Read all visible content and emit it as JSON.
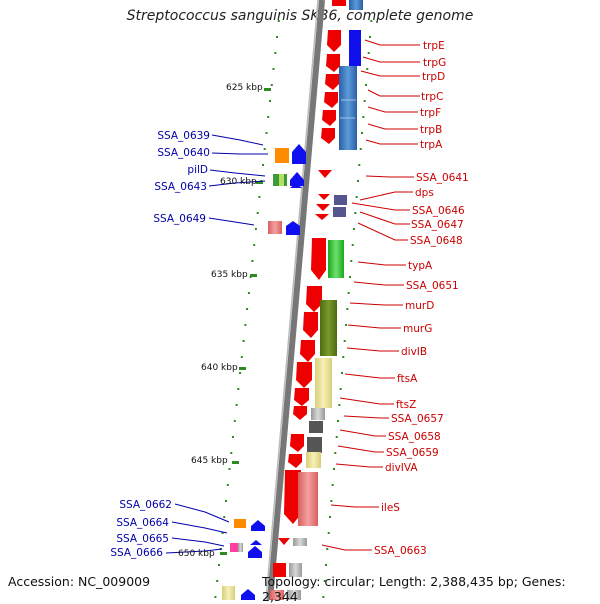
{
  "title": "Streptococcus sanguinis SK36, complete genome",
  "footer": {
    "accession": "Accession: NC_009009",
    "topology": "Topology: circular; Length: 2,388,435 bp; Genes: 2,344"
  },
  "kbp_labels": [
    "625 kbp",
    "630 kbp",
    "635 kbp",
    "640 kbp",
    "645 kbp",
    "650 kbp"
  ],
  "right_genes": [
    "trpE",
    "trpG",
    "trpD",
    "trpC",
    "trpF",
    "trpB",
    "trpA",
    "SSA_0641",
    "dps",
    "SSA_0646",
    "SSA_0647",
    "SSA_0648",
    "typA",
    "SSA_0651",
    "murD",
    "murG",
    "divIB",
    "ftsA",
    "ftsZ",
    "SSA_0657",
    "SSA_0658",
    "SSA_0659",
    "divIVA",
    "ileS",
    "SSA_0663"
  ],
  "left_genes": [
    "SSA_0639",
    "SSA_0640",
    "pilD",
    "SSA_0643",
    "SSA_0649",
    "SSA_0662",
    "SSA_0664",
    "SSA_0665",
    "SSA_0666"
  ],
  "colors": {
    "right_label": "#cc0000",
    "left_label": "#0000aa",
    "tick": "#2e8b22",
    "strand_red": "#ee0000",
    "strand_blue": "#1010ee"
  }
}
